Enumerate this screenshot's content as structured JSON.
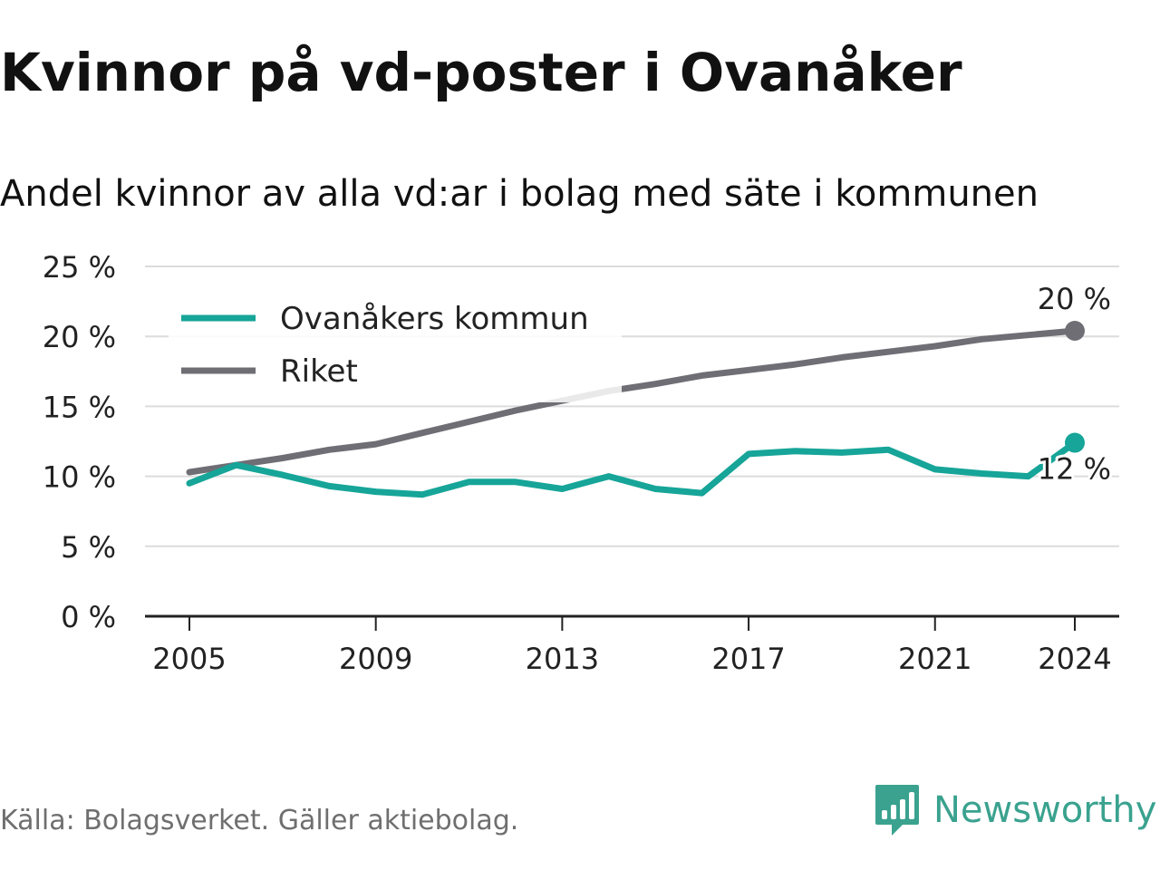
{
  "title": "Kvinnor på vd-poster i Ovanåker",
  "subtitle": "Andel kvinnor av alla vd:ar i bolag med säte i kommunen",
  "source": "Källa: Bolagsverket. Gäller aktiebolag.",
  "brand": {
    "name": "Newsworthy",
    "icon": "newsworthy-bar-chart-icon",
    "color": "#3aa28f"
  },
  "chart_data": {
    "type": "line",
    "x": [
      2005,
      2006,
      2007,
      2008,
      2009,
      2010,
      2011,
      2012,
      2013,
      2014,
      2015,
      2016,
      2017,
      2018,
      2019,
      2020,
      2021,
      2022,
      2023,
      2024
    ],
    "series": [
      {
        "name": "Ovanåkers kommun",
        "color": "#16a598",
        "values": [
          9.5,
          10.8,
          10.1,
          9.3,
          8.9,
          8.7,
          9.6,
          9.6,
          9.1,
          10.0,
          9.1,
          8.8,
          11.6,
          11.8,
          11.7,
          11.9,
          10.5,
          10.2,
          10.0,
          12.4
        ],
        "end_label": "12 %"
      },
      {
        "name": "Riket",
        "color": "#6f6e75",
        "values": [
          10.3,
          10.8,
          11.3,
          11.9,
          12.3,
          13.1,
          13.9,
          14.7,
          15.4,
          16.1,
          16.6,
          17.2,
          17.6,
          18.0,
          18.5,
          18.9,
          19.3,
          19.8,
          20.1,
          20.4
        ],
        "end_label": "20 %"
      }
    ],
    "ylim": [
      0,
      25
    ],
    "y_ticks": [
      0,
      5,
      10,
      15,
      20,
      25
    ],
    "y_tick_labels": [
      "0 %",
      "5 %",
      "10 %",
      "15 %",
      "20 %",
      "25 %"
    ],
    "x_ticks": [
      2005,
      2009,
      2013,
      2017,
      2021,
      2024
    ],
    "x_tick_labels": [
      "2005",
      "2009",
      "2013",
      "2017",
      "2021",
      "2024"
    ],
    "xlabel": "",
    "ylabel": "",
    "grid": true,
    "legend_position": "top-left"
  }
}
